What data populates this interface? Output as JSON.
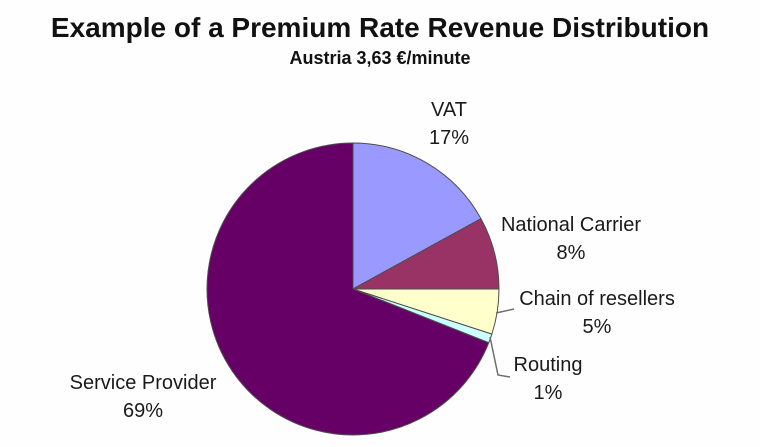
{
  "chart_data": {
    "type": "pie",
    "title": "Example of a Premium Rate Revenue Distribution",
    "subtitle": "Austria 3,63 €/minute",
    "start_angle_deg": 0,
    "direction": "clockwise",
    "legend": "none",
    "label_style": "outside-category-and-percent",
    "background_color": "#FFFFFF",
    "slices": [
      {
        "name": "VAT",
        "value": 17,
        "pct_label": "17%",
        "color": "#9999FF"
      },
      {
        "name": "National Carrier",
        "value": 8,
        "pct_label": "8%",
        "color": "#993366"
      },
      {
        "name": "Chain of resellers",
        "value": 5,
        "pct_label": "5%",
        "color": "#FFFFCC"
      },
      {
        "name": "Routing",
        "value": 1,
        "pct_label": "1%",
        "color": "#CCFFFF"
      },
      {
        "name": "Service Provider",
        "value": 69,
        "pct_label": "69%",
        "color": "#660066"
      }
    ]
  }
}
